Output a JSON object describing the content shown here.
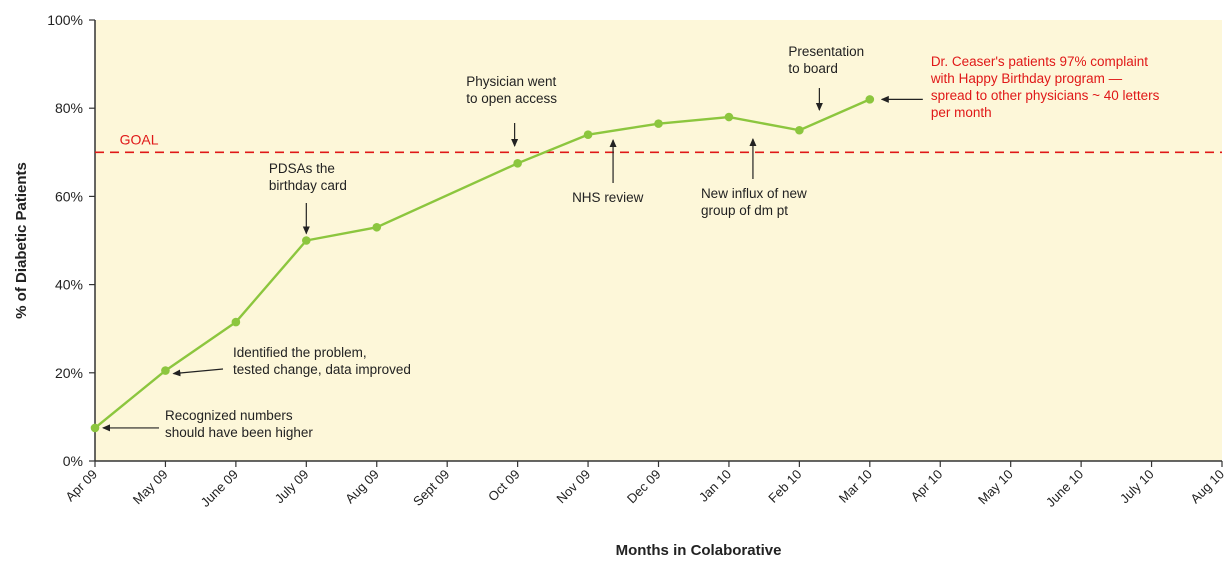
{
  "chart_data": {
    "type": "line",
    "title": "",
    "xlabel": "Months  in Colaborative",
    "ylabel": "% of Diabetic Patients",
    "categories": [
      "Apr 09",
      "May 09",
      "June 09",
      "July 09",
      "Aug 09",
      "Sept 09",
      "Oct 09",
      "Nov 09",
      "Dec 09",
      "Jan 10",
      "Feb 10",
      "Mar 10",
      "Apr 10",
      "May 10",
      "June 10",
      "July 10",
      "Aug 10"
    ],
    "yticks": [
      "0%",
      "20%",
      "40%",
      "60%",
      "80%",
      "100%"
    ],
    "ylim": [
      0,
      100
    ],
    "grid": false,
    "background_color": "#fdf7d9",
    "line_color": "#8cc63e",
    "goal_color": "#e01818",
    "annotation_color": "#222222",
    "highlight_annotation_color": "#e01818",
    "series": [
      {
        "points": [
          {
            "x": "Apr 09",
            "y": 7.5
          },
          {
            "x": "May 09",
            "y": 20.5
          },
          {
            "x": "June 09",
            "y": 31.5
          },
          {
            "x": "July 09",
            "y": 50
          },
          {
            "x": "Aug 09",
            "y": 53
          },
          {
            "x": "Oct 09",
            "y": 67.5
          },
          {
            "x": "Nov 09",
            "y": 74
          },
          {
            "x": "Dec 09",
            "y": 76.5
          },
          {
            "x": "Jan 10",
            "y": 78
          },
          {
            "x": "Feb 10",
            "y": 75
          },
          {
            "x": "Mar 10",
            "y": 82
          }
        ]
      }
    ],
    "goal": {
      "label": "GOAL",
      "value": 70
    },
    "annotations": [
      {
        "lines": [
          "Recognized numbers",
          "should have been higher"
        ],
        "color": "dark"
      },
      {
        "lines": [
          "Identified the problem,",
          "tested change, data improved"
        ],
        "color": "dark"
      },
      {
        "lines": [
          "PDSAs the",
          "birthday card"
        ],
        "color": "dark"
      },
      {
        "lines": [
          "Physician went",
          "to open access"
        ],
        "color": "dark"
      },
      {
        "lines": [
          "NHS review"
        ],
        "color": "dark"
      },
      {
        "lines": [
          "New influx of new",
          "group of dm pt"
        ],
        "color": "dark"
      },
      {
        "lines": [
          "Presentation",
          "to board"
        ],
        "color": "dark"
      },
      {
        "lines": [
          "Dr. Ceaser's patients 97% complaint",
          "with Happy Birthday program —",
          "spread to other physicians ~ 40 letters",
          "per month"
        ],
        "color": "red"
      }
    ]
  }
}
